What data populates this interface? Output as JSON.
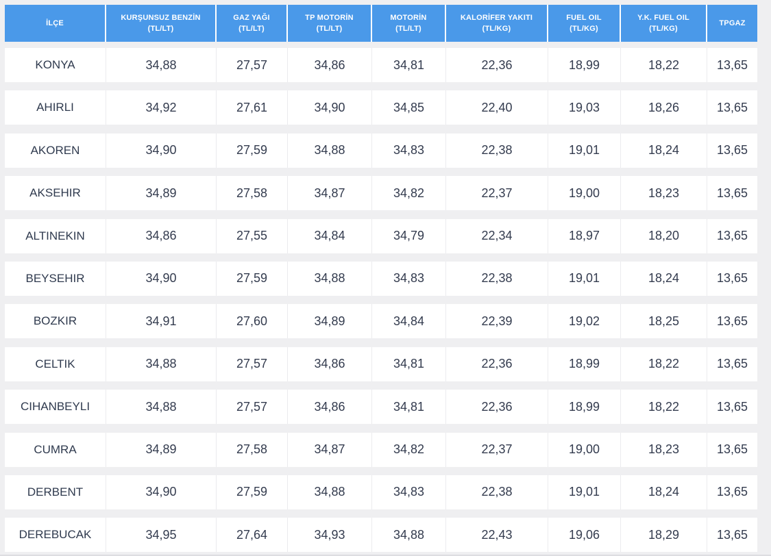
{
  "colors": {
    "header_bg": "#4a99e9",
    "header_text": "#ffffff",
    "page_bg": "#efeff1",
    "cell_bg": "#ffffff",
    "cell_text": "#333b4e"
  },
  "table": {
    "columns": [
      {
        "id": "ilce",
        "label": "İLÇE",
        "unit": ""
      },
      {
        "id": "kursunsuz-benzin",
        "label": "KURŞUNSUZ BENZİN",
        "unit": "(TL/LT)"
      },
      {
        "id": "gaz-yagi",
        "label": "GAZ YAĞI",
        "unit": "(TL/LT)"
      },
      {
        "id": "tp-motorin",
        "label": "TP MOTORİN",
        "unit": "(TL/LT)"
      },
      {
        "id": "motorin",
        "label": "MOTORİN",
        "unit": "(TL/LT)"
      },
      {
        "id": "kalorifer-yakiti",
        "label": "KALORİFER YAKITI",
        "unit": "(TL/KG)"
      },
      {
        "id": "fuel-oil",
        "label": "FUEL OIL",
        "unit": "(TL/KG)"
      },
      {
        "id": "yk-fuel-oil",
        "label": "Y.K. FUEL OIL",
        "unit": "(TL/KG)"
      },
      {
        "id": "tpgaz",
        "label": "TPGAZ",
        "unit": ""
      }
    ],
    "rows": [
      {
        "ilce": "KONYA",
        "values": [
          "34,88",
          "27,57",
          "34,86",
          "34,81",
          "22,36",
          "18,99",
          "18,22",
          "13,65"
        ]
      },
      {
        "ilce": "AHIRLI",
        "values": [
          "34,92",
          "27,61",
          "34,90",
          "34,85",
          "22,40",
          "19,03",
          "18,26",
          "13,65"
        ]
      },
      {
        "ilce": "AKOREN",
        "values": [
          "34,90",
          "27,59",
          "34,88",
          "34,83",
          "22,38",
          "19,01",
          "18,24",
          "13,65"
        ]
      },
      {
        "ilce": "AKSEHIR",
        "values": [
          "34,89",
          "27,58",
          "34,87",
          "34,82",
          "22,37",
          "19,00",
          "18,23",
          "13,65"
        ]
      },
      {
        "ilce": "ALTINEKIN",
        "values": [
          "34,86",
          "27,55",
          "34,84",
          "34,79",
          "22,34",
          "18,97",
          "18,20",
          "13,65"
        ]
      },
      {
        "ilce": "BEYSEHIR",
        "values": [
          "34,90",
          "27,59",
          "34,88",
          "34,83",
          "22,38",
          "19,01",
          "18,24",
          "13,65"
        ]
      },
      {
        "ilce": "BOZKIR",
        "values": [
          "34,91",
          "27,60",
          "34,89",
          "34,84",
          "22,39",
          "19,02",
          "18,25",
          "13,65"
        ]
      },
      {
        "ilce": "CELTIK",
        "values": [
          "34,88",
          "27,57",
          "34,86",
          "34,81",
          "22,36",
          "18,99",
          "18,22",
          "13,65"
        ]
      },
      {
        "ilce": "CIHANBEYLI",
        "values": [
          "34,88",
          "27,57",
          "34,86",
          "34,81",
          "22,36",
          "18,99",
          "18,22",
          "13,65"
        ]
      },
      {
        "ilce": "CUMRA",
        "values": [
          "34,89",
          "27,58",
          "34,87",
          "34,82",
          "22,37",
          "19,00",
          "18,23",
          "13,65"
        ]
      },
      {
        "ilce": "DERBENT",
        "values": [
          "34,90",
          "27,59",
          "34,88",
          "34,83",
          "22,38",
          "19,01",
          "18,24",
          "13,65"
        ]
      },
      {
        "ilce": "DEREBUCAK",
        "values": [
          "34,95",
          "27,64",
          "34,93",
          "34,88",
          "22,43",
          "19,06",
          "18,29",
          "13,65"
        ]
      }
    ]
  }
}
